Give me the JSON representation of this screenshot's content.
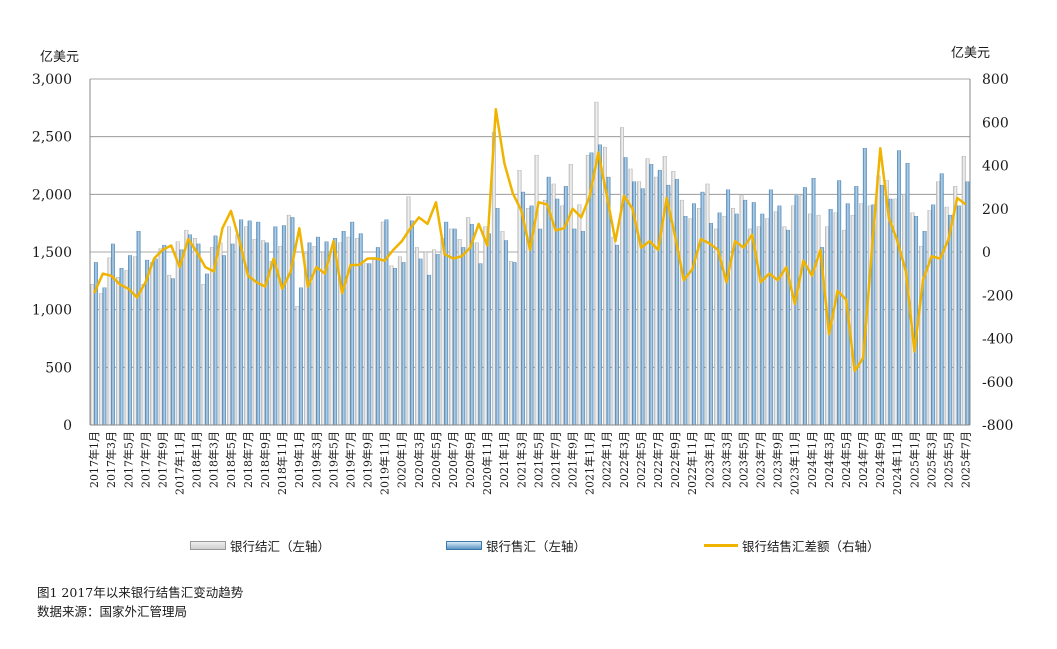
{
  "chart_data": {
    "type": "bar",
    "caption": "图1   2017年以来银行结售汇变动趋势",
    "source": "数据来源：国家外汇管理局",
    "left_unit": "亿美元",
    "right_unit": "亿美元",
    "y_left": {
      "ylim": [
        0,
        3000
      ],
      "ticks": [
        "0",
        "500",
        "1,000",
        "1,500",
        "2,000",
        "2,500",
        "3,000"
      ]
    },
    "y_right": {
      "ylim": [
        -800,
        800
      ],
      "ticks": [
        "-800",
        "-600",
        "-400",
        "-200",
        "0",
        "200",
        "400",
        "600",
        "800"
      ]
    },
    "grid": true,
    "tick_labels_every": 2,
    "legend": [
      "银行结汇（左轴）",
      "银行售汇（左轴）",
      "银行结售汇差额（右轴）"
    ],
    "categories": [
      "2017年1月",
      "2017年2月",
      "2017年3月",
      "2017年4月",
      "2017年5月",
      "2017年6月",
      "2017年7月",
      "2017年8月",
      "2017年9月",
      "2017年10月",
      "2017年11月",
      "2017年12月",
      "2018年1月",
      "2018年2月",
      "2018年3月",
      "2018年4月",
      "2018年5月",
      "2018年6月",
      "2018年7月",
      "2018年8月",
      "2018年9月",
      "2018年10月",
      "2018年11月",
      "2018年12月",
      "2019年1月",
      "2019年2月",
      "2019年3月",
      "2019年4月",
      "2019年5月",
      "2019年6月",
      "2019年7月",
      "2019年8月",
      "2019年9月",
      "2019年10月",
      "2019年11月",
      "2019年12月",
      "2020年1月",
      "2020年2月",
      "2020年3月",
      "2020年4月",
      "2020年5月",
      "2020年6月",
      "2020年7月",
      "2020年8月",
      "2020年9月",
      "2020年10月",
      "2020年11月",
      "2020年12月",
      "2021年1月",
      "2021年2月",
      "2021年3月",
      "2021年4月",
      "2021年5月",
      "2021年6月",
      "2021年7月",
      "2021年8月",
      "2021年9月",
      "2021年10月",
      "2021年11月",
      "2021年12月",
      "2022年1月",
      "2022年2月",
      "2022年3月",
      "2022年4月",
      "2022年5月",
      "2022年6月",
      "2022年7月",
      "2022年8月",
      "2022年9月",
      "2022年10月",
      "2022年11月",
      "2022年12月",
      "2023年1月",
      "2023年2月",
      "2023年3月",
      "2023年4月",
      "2023年5月",
      "2023年6月",
      "2023年7月",
      "2023年8月",
      "2023年9月",
      "2023年10月",
      "2023年11月",
      "2023年12月",
      "2024年1月",
      "2024年2月",
      "2024年3月",
      "2024年4月",
      "2024年5月",
      "2024年6月",
      "2024年7月",
      "2024年8月",
      "2024年9月",
      "2024年10月",
      "2024年11月",
      "2024年12月",
      "2025年1月",
      "2025年2月",
      "2025年3月",
      "2025年4月",
      "2025年5月",
      "2025年6月",
      "2025年7月"
    ],
    "series": [
      {
        "name": "银行结汇（左轴）",
        "axis": "left",
        "type": "bar",
        "values": [
          1220,
          1140,
          1450,
          1280,
          1340,
          1460,
          1220,
          1410,
          1530,
          1300,
          1590,
          1690,
          1620,
          1220,
          1540,
          1580,
          1720,
          1650,
          1720,
          1610,
          1600,
          1420,
          1550,
          1820,
          1030,
          1490,
          1550,
          1500,
          1500,
          1580,
          1630,
          1620,
          1400,
          1450,
          1760,
          1380,
          1460,
          1980,
          1540,
          1500,
          1520,
          1620,
          1700,
          1610,
          1800,
          1580,
          1720,
          2540,
          1680,
          1420,
          2210,
          1880,
          2340,
          1950,
          2090,
          1900,
          2260,
          1910,
          2340,
          2800,
          2410,
          1630,
          2580,
          2220,
          2110,
          2310,
          2150,
          2330,
          2200,
          1950,
          1790,
          1880,
          2090,
          1700,
          1810,
          1880,
          1990,
          1700,
          1720,
          1790,
          1850,
          1720,
          1900,
          1990,
          1830,
          1820,
          1720,
          1840,
          1690,
          1820,
          1920,
          1900,
          2160,
          2120,
          1960,
          2000,
          1840,
          1550,
          1860,
          2110,
          1890,
          2070,
          2330
        ]
      },
      {
        "name": "银行售汇（左轴）",
        "axis": "left",
        "type": "bar",
        "values": [
          1410,
          1190,
          1570,
          1360,
          1470,
          1680,
          1430,
          1440,
          1560,
          1270,
          1520,
          1650,
          1570,
          1310,
          1640,
          1470,
          1570,
          1780,
          1770,
          1760,
          1580,
          1720,
          1730,
          1800,
          1190,
          1580,
          1630,
          1590,
          1620,
          1680,
          1760,
          1660,
          1400,
          1540,
          1780,
          1360,
          1410,
          1770,
          1440,
          1300,
          1480,
          1760,
          1700,
          1540,
          1740,
          1400,
          1660,
          1880,
          1600,
          1410,
          2020,
          1900,
          1700,
          2150,
          1960,
          2070,
          1700,
          1680,
          2360,
          2430,
          2150,
          1560,
          2320,
          2110,
          2050,
          2260,
          2210,
          2080,
          2130,
          1810,
          1920,
          2020,
          1750,
          1840,
          2040,
          1830,
          1950,
          1930,
          1830,
          2040,
          1900,
          1690,
          1990,
          2060,
          2140,
          1540,
          1870,
          2120,
          1920,
          2070,
          2400,
          1910,
          2080,
          1960,
          2380,
          2270,
          1810,
          1680,
          1910,
          2180,
          1820,
          1900,
          2110
        ]
      },
      {
        "name": "银行结售汇差额（右轴）",
        "axis": "right",
        "type": "line",
        "values": [
          -190,
          -100,
          -110,
          -150,
          -170,
          -210,
          -140,
          -30,
          10,
          30,
          -70,
          60,
          0,
          -70,
          -90,
          110,
          190,
          50,
          -110,
          -140,
          -160,
          -30,
          -170,
          -90,
          110,
          -160,
          -70,
          -100,
          50,
          -190,
          -60,
          -60,
          -30,
          -30,
          -40,
          10,
          50,
          110,
          160,
          130,
          230,
          -10,
          -30,
          -20,
          20,
          130,
          30,
          660,
          410,
          270,
          190,
          10,
          230,
          220,
          100,
          110,
          200,
          160,
          260,
          460,
          260,
          50,
          260,
          200,
          20,
          50,
          10,
          250,
          70,
          -130,
          -80,
          60,
          40,
          10,
          -140,
          50,
          20,
          80,
          -140,
          -100,
          -130,
          -70,
          -240,
          -40,
          -110,
          10,
          -380,
          -180,
          -220,
          -550,
          -490,
          0,
          480,
          160,
          50,
          -90,
          -460,
          -130,
          -20,
          -30,
          60,
          250,
          220
        ]
      }
    ]
  }
}
